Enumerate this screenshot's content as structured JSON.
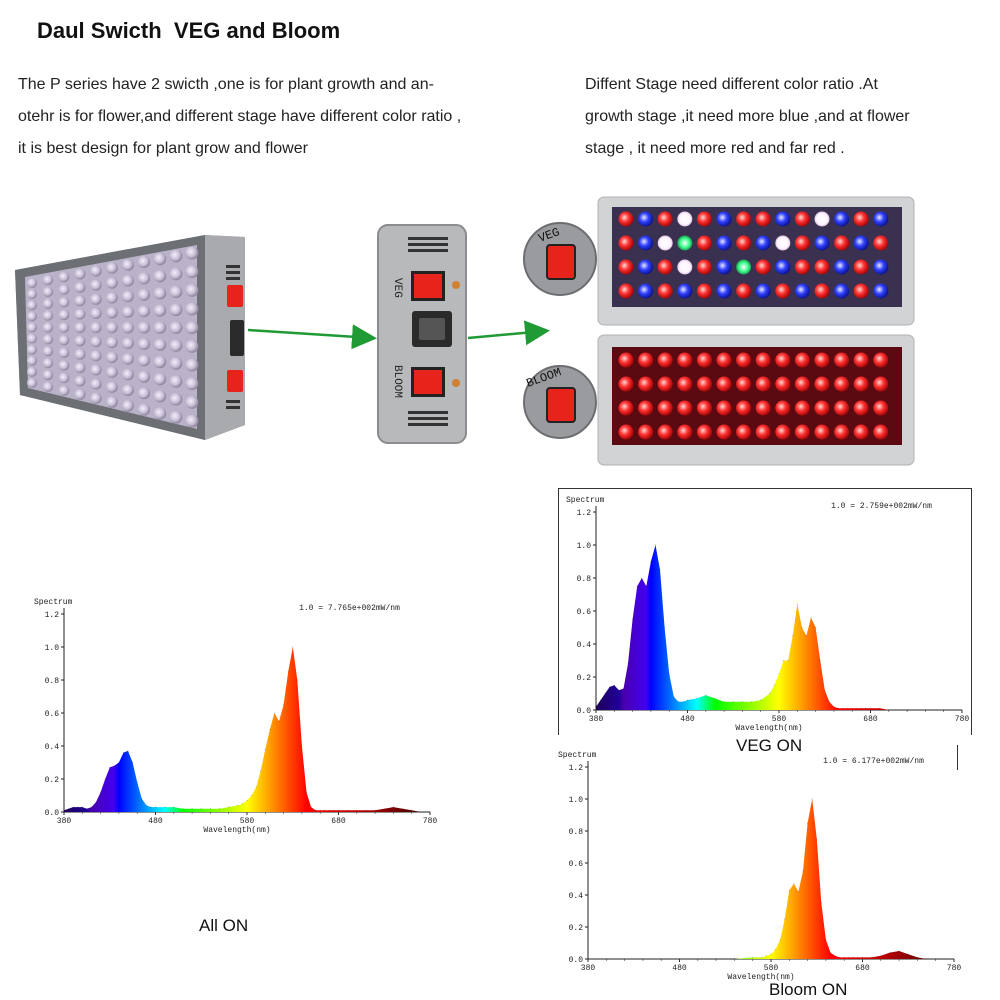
{
  "headline": "Daul Swicth  VEG and Bloom",
  "left_text": [
    "The P series have 2 swicth ,one is for plant growth and an-",
    "otehr is for flower,and different stage have different color ratio ,",
    "it is best design for plant grow and flower"
  ],
  "right_text": [
    "Diffent Stage need different color ratio .At",
    "growth stage ,it need more blue ,and at flower",
    "stage , it need more red and far red ."
  ],
  "device": {
    "switch_labels": [
      "VEG",
      "BLOOM"
    ],
    "colors": {
      "panel": "#c9cacb",
      "frame": "#7d8084",
      "switch_red": "#e8231c",
      "arrow": "#1f9a34"
    }
  },
  "captions": {
    "all_on": "All ON",
    "veg_on": "VEG ON",
    "bloom_on": "Bloom ON"
  },
  "chart_data": [
    {
      "type": "area",
      "title": "",
      "panel_label": "All ON",
      "ylabel": "Spectrum",
      "xlabel": "Wavelength(nm)",
      "scale_note": "1.0 = 7.765e+002mW/nm",
      "x_ticks": [
        380,
        480,
        580,
        680,
        780
      ],
      "y_ticks": [
        0.0,
        0.2,
        0.4,
        0.6,
        0.8,
        1.0,
        1.2
      ],
      "xlim": [
        380,
        780
      ],
      "ylim": [
        0,
        1.2
      ],
      "series": [
        {
          "x": [
            380,
            385,
            390,
            395,
            400,
            405,
            410,
            415,
            420,
            425,
            430,
            435,
            440,
            445,
            450,
            455,
            460,
            465,
            470,
            475,
            480,
            490,
            500,
            510,
            520,
            530,
            540,
            550,
            560,
            570,
            575,
            580,
            585,
            590,
            595,
            600,
            605,
            610,
            615,
            620,
            625,
            630,
            635,
            640,
            645,
            650,
            655,
            660,
            665,
            670,
            675,
            680,
            690,
            700,
            710,
            720,
            730,
            740,
            750,
            760,
            770,
            780
          ],
          "y": [
            0.01,
            0.02,
            0.03,
            0.03,
            0.03,
            0.02,
            0.03,
            0.06,
            0.12,
            0.2,
            0.27,
            0.28,
            0.3,
            0.36,
            0.37,
            0.3,
            0.18,
            0.08,
            0.04,
            0.03,
            0.03,
            0.03,
            0.03,
            0.02,
            0.02,
            0.02,
            0.02,
            0.02,
            0.03,
            0.04,
            0.05,
            0.07,
            0.1,
            0.15,
            0.25,
            0.38,
            0.5,
            0.6,
            0.55,
            0.65,
            0.85,
            1.0,
            0.8,
            0.4,
            0.12,
            0.03,
            0.01,
            0.01,
            0.01,
            0.01,
            0.01,
            0.01,
            0.01,
            0.01,
            0.01,
            0.01,
            0.02,
            0.03,
            0.02,
            0.01,
            0.0,
            0.0
          ]
        }
      ]
    },
    {
      "type": "area",
      "title": "",
      "panel_label": "VEG ON",
      "ylabel": "Spectrum",
      "xlabel": "Wavelength(nm)",
      "scale_note": "1.0 = 2.759e+002mW/nm",
      "x_ticks": [
        380,
        480,
        580,
        680,
        780
      ],
      "y_ticks": [
        0.0,
        0.2,
        0.4,
        0.6,
        0.8,
        1.0,
        1.2
      ],
      "xlim": [
        380,
        780
      ],
      "ylim": [
        0,
        1.2
      ],
      "series": [
        {
          "x": [
            380,
            385,
            390,
            395,
            400,
            405,
            410,
            415,
            420,
            425,
            430,
            435,
            440,
            445,
            450,
            455,
            460,
            465,
            470,
            475,
            480,
            490,
            500,
            510,
            520,
            530,
            540,
            550,
            560,
            570,
            575,
            580,
            585,
            590,
            595,
            600,
            605,
            610,
            615,
            620,
            625,
            630,
            635,
            640,
            645,
            650,
            655,
            660,
            665,
            670,
            675,
            680,
            690,
            700,
            710,
            720,
            730,
            740,
            750,
            760,
            770,
            780
          ],
          "y": [
            0.02,
            0.06,
            0.1,
            0.14,
            0.15,
            0.12,
            0.13,
            0.28,
            0.55,
            0.75,
            0.8,
            0.75,
            0.9,
            1.0,
            0.85,
            0.5,
            0.22,
            0.08,
            0.05,
            0.05,
            0.06,
            0.07,
            0.09,
            0.07,
            0.05,
            0.05,
            0.05,
            0.05,
            0.06,
            0.1,
            0.15,
            0.22,
            0.3,
            0.3,
            0.45,
            0.64,
            0.5,
            0.45,
            0.56,
            0.5,
            0.3,
            0.12,
            0.05,
            0.02,
            0.01,
            0.01,
            0.01,
            0.01,
            0.01,
            0.01,
            0.01,
            0.01,
            0.01,
            0.0,
            0.0,
            0.0,
            0.0,
            0.0,
            0.0,
            0.0,
            0.0,
            0.0
          ]
        }
      ]
    },
    {
      "type": "area",
      "title": "",
      "panel_label": "Bloom ON",
      "ylabel": "Spectrum",
      "xlabel": "Wavelength(nm)",
      "scale_note": "1.0 = 6.177e+002mW/nm",
      "x_ticks": [
        380,
        480,
        580,
        680,
        780
      ],
      "y_ticks": [
        0.0,
        0.2,
        0.4,
        0.6,
        0.8,
        1.0,
        1.2
      ],
      "xlim": [
        380,
        780
      ],
      "ylim": [
        0,
        1.2
      ],
      "series": [
        {
          "x": [
            380,
            400,
            420,
            440,
            460,
            480,
            500,
            520,
            540,
            560,
            570,
            575,
            580,
            585,
            590,
            595,
            600,
            605,
            610,
            615,
            620,
            625,
            630,
            635,
            640,
            645,
            650,
            655,
            660,
            665,
            670,
            675,
            680,
            690,
            700,
            710,
            720,
            730,
            740,
            750,
            760,
            770,
            780
          ],
          "y": [
            0.0,
            0.0,
            0.0,
            0.0,
            0.0,
            0.0,
            0.0,
            0.0,
            0.0,
            0.01,
            0.01,
            0.02,
            0.03,
            0.06,
            0.12,
            0.25,
            0.43,
            0.47,
            0.42,
            0.55,
            0.85,
            1.0,
            0.75,
            0.35,
            0.12,
            0.04,
            0.02,
            0.01,
            0.01,
            0.01,
            0.01,
            0.01,
            0.01,
            0.01,
            0.02,
            0.04,
            0.05,
            0.03,
            0.01,
            0.0,
            0.0,
            0.0,
            0.0
          ]
        }
      ]
    }
  ]
}
